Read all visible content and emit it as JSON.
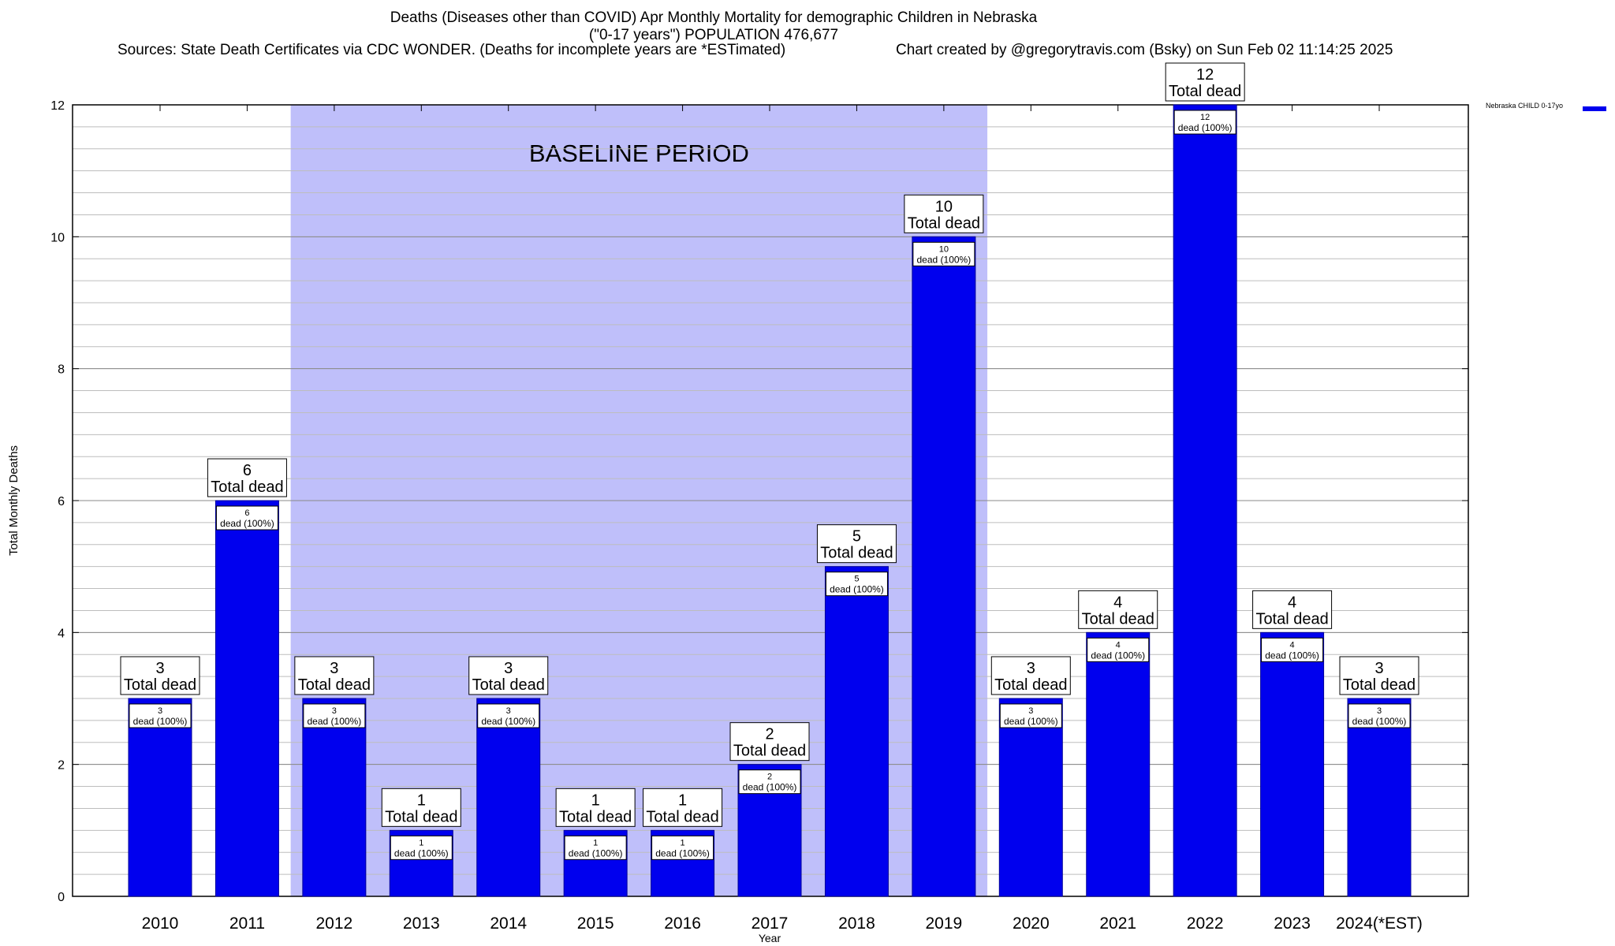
{
  "header": {
    "title_line1": "Deaths (Diseases other than COVID) Apr Monthly Mortality for demographic Children in Nebraska",
    "title_line2": "(\"0-17 years\") POPULATION 476,677",
    "sources": "Sources: State Death Certificates via CDC WONDER. (Deaths for incomplete years are *ESTimated)",
    "credit": "Chart created by @gregorytravis.com (Bsky) on Sun Feb 02 11:14:25 2025"
  },
  "legend": {
    "label": "Nebraska CHILD 0-17yo"
  },
  "colors": {
    "bar": "#0000ee",
    "bar_dark": "#00009a",
    "baseline_band": "#bfbffa",
    "grid": "#bdbdbd"
  },
  "chart_data": {
    "type": "bar",
    "xlabel": "Year",
    "ylabel": "Total Monthly Deaths",
    "ylim": [
      0,
      12
    ],
    "yticks": [
      0,
      2,
      4,
      6,
      8,
      10,
      12
    ],
    "grid": true,
    "legend_position": "top-right, outside plot",
    "categories": [
      "2010",
      "2011",
      "2012",
      "2013",
      "2014",
      "2015",
      "2016",
      "2017",
      "2018",
      "2019",
      "2020",
      "2021",
      "2022",
      "2023",
      "2024(*EST)"
    ],
    "series": [
      {
        "name": "Nebraska CHILD 0-17yo",
        "values": [
          3,
          6,
          3,
          1,
          3,
          1,
          1,
          2,
          5,
          10,
          3,
          4,
          12,
          4,
          3
        ]
      }
    ],
    "baseline_period": {
      "label": "BASELINE PERIOD",
      "from": "2012",
      "to": "2019"
    },
    "total_label_text": "Total dead",
    "segment_label_text": "dead (100%)"
  }
}
